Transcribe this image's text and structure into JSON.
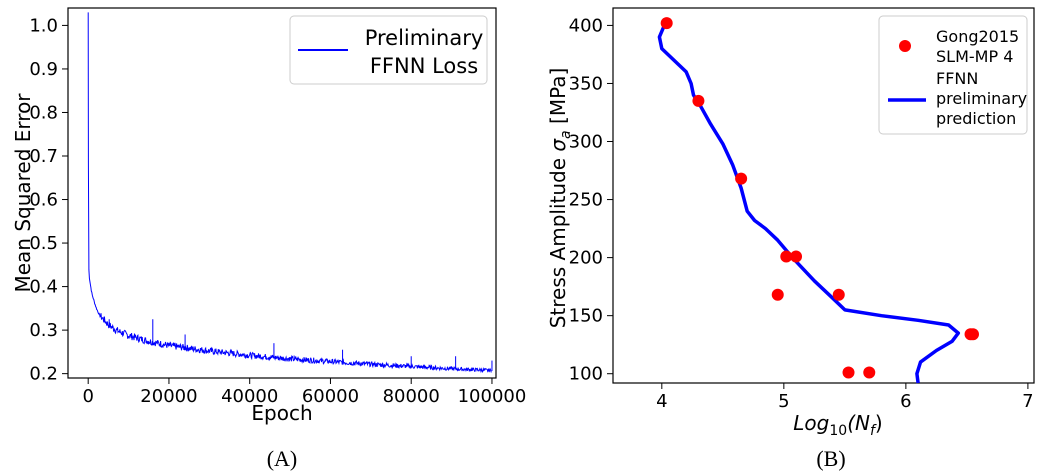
{
  "chart_data": [
    {
      "type": "line",
      "panel_label": "(A)",
      "xlabel": "Epoch",
      "ylabel": "Mean Squared Error",
      "xlim": [
        -5000,
        101000
      ],
      "ylim": [
        0.19,
        1.04
      ],
      "xticks": [
        0,
        20000,
        40000,
        60000,
        80000,
        100000
      ],
      "xtick_labels": [
        "0",
        "20000",
        "40000",
        "60000",
        "80000",
        "100000"
      ],
      "yticks": [
        0.2,
        0.3,
        0.4,
        0.5,
        0.6,
        0.7,
        0.8,
        0.9,
        1.0
      ],
      "ytick_labels": [
        "0.2",
        "0.3",
        "0.4",
        "0.5",
        "0.6",
        "0.7",
        "0.8",
        "0.9",
        "1.0"
      ],
      "grid": false,
      "legend_position": "top-right",
      "series": [
        {
          "name_lines": [
            "Preliminary",
            "FFNN Loss"
          ],
          "color": "#0000ff",
          "x": [
            0,
            100,
            300,
            600,
            1000,
            2000,
            3000,
            5000,
            7000,
            10000,
            15000,
            20000,
            30000,
            40000,
            50000,
            60000,
            70000,
            80000,
            90000,
            100000
          ],
          "y": [
            1.03,
            0.45,
            0.42,
            0.4,
            0.38,
            0.35,
            0.33,
            0.31,
            0.297,
            0.285,
            0.272,
            0.262,
            0.25,
            0.24,
            0.232,
            0.226,
            0.22,
            0.215,
            0.21,
            0.206
          ],
          "spikes": [
            {
              "x": 5200,
              "y": 0.325
            },
            {
              "x": 16000,
              "y": 0.325
            },
            {
              "x": 24000,
              "y": 0.29
            },
            {
              "x": 46000,
              "y": 0.27
            },
            {
              "x": 63000,
              "y": 0.255
            },
            {
              "x": 80000,
              "y": 0.24
            },
            {
              "x": 91000,
              "y": 0.24
            },
            {
              "x": 100000,
              "y": 0.23
            }
          ]
        }
      ]
    },
    {
      "type": "scatter",
      "panel_label": "(B)",
      "xlabel": "Log10(Nf)",
      "xlabel_parts": {
        "base": "Log",
        "base_sub": "10",
        "open": "(N",
        "arg_sub": "f",
        "close": ")"
      },
      "ylabel": "Stress Amplitude σa [MPa]",
      "ylabel_parts": {
        "text": "Stress Amplitude ",
        "symbol": "σ",
        "symbol_sub": "a",
        "unit": " [MPa]"
      },
      "xlim": [
        3.6,
        7.05
      ],
      "ylim": [
        92,
        415
      ],
      "xticks": [
        4,
        5,
        6,
        7
      ],
      "xtick_labels": [
        "4",
        "5",
        "6",
        "7"
      ],
      "yticks": [
        100,
        150,
        200,
        250,
        300,
        350,
        400
      ],
      "ytick_labels": [
        "100",
        "150",
        "200",
        "250",
        "300",
        "350",
        "400"
      ],
      "grid": false,
      "legend_position": "top-right",
      "series": [
        {
          "name_lines": [
            "Gong2015",
            "SLM-MP 4"
          ],
          "kind": "scatter",
          "color": "#ff0000",
          "x": [
            4.04,
            4.3,
            4.65,
            5.02,
            5.1,
            4.95,
            5.45,
            6.53,
            6.55,
            5.53,
            5.7
          ],
          "y": [
            402,
            335,
            268,
            201,
            201,
            168,
            168,
            134,
            134,
            101,
            101
          ]
        },
        {
          "name_lines": [
            "FFNN",
            "preliminary",
            "prediction"
          ],
          "kind": "line",
          "color": "#0000ff",
          "x": [
            6.1,
            6.09,
            6.12,
            6.25,
            6.38,
            6.43,
            6.35,
            6.1,
            5.8,
            5.5,
            5.4,
            5.25,
            5.07,
            4.95,
            4.85,
            4.76,
            4.7,
            4.65,
            4.58,
            4.5,
            4.4,
            4.32,
            4.26,
            4.24,
            4.2,
            4.12,
            4.0,
            3.98,
            4.02
          ],
          "y": [
            92,
            100,
            110,
            120,
            128,
            135,
            142,
            146,
            150,
            155,
            165,
            180,
            200,
            215,
            225,
            232,
            240,
            260,
            280,
            298,
            315,
            330,
            340,
            350,
            360,
            368,
            380,
            390,
            400
          ]
        }
      ]
    }
  ],
  "captions": {
    "left": "(A)",
    "right": "(B)"
  }
}
